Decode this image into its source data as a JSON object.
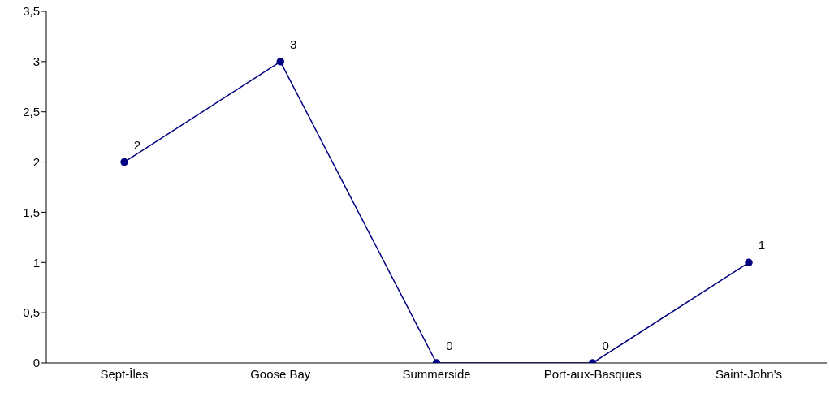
{
  "chart_data": {
    "type": "line",
    "categories": [
      "Sept-Îles",
      "Goose Bay",
      "Summerside",
      "Port-aux-Basques",
      "Saint-John's"
    ],
    "series": [
      {
        "color": "#000080",
        "values": [
          2,
          3,
          0,
          0,
          1
        ]
      }
    ],
    "ylim": [
      0,
      3.5
    ],
    "yticks": [
      0,
      {
        "value": 0.5,
        "label": "0,5"
      },
      1,
      {
        "value": 1.5,
        "label": "1,5"
      },
      2,
      {
        "value": 2.5,
        "label": "2,5"
      },
      3,
      {
        "value": 3.5,
        "label": "3,5"
      }
    ],
    "grid": false,
    "legend": false,
    "marker": "circle",
    "line_style": "solid",
    "data_labels": true
  }
}
